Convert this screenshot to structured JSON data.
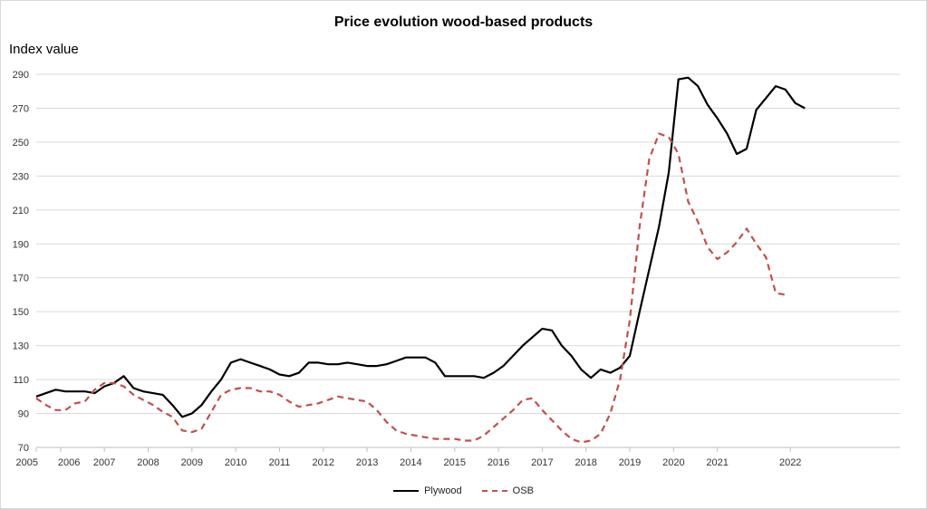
{
  "chart_data": {
    "type": "line",
    "title": "Price evolution wood-based products",
    "ylabel": "Index value",
    "xlabel": "",
    "ylim": [
      70,
      290
    ],
    "yticks": [
      70,
      90,
      110,
      130,
      150,
      170,
      190,
      210,
      230,
      250,
      270,
      290
    ],
    "xlim": [
      2005.0,
      2022.75
    ],
    "xticks": [
      {
        "label": "2005",
        "x": 2005.0
      },
      {
        "label": "2006",
        "x": 2005.5
      },
      {
        "label": "2007",
        "x": 2006.4
      },
      {
        "label": "2008",
        "x": 2007.3
      },
      {
        "label": "2009",
        "x": 2008.2
      },
      {
        "label": "2010",
        "x": 2009.1
      },
      {
        "label": "2011",
        "x": 2010.0
      },
      {
        "label": "2012",
        "x": 2010.9
      },
      {
        "label": "2013",
        "x": 2011.8
      },
      {
        "label": "2014",
        "x": 2012.7
      },
      {
        "label": "2015",
        "x": 2013.6
      },
      {
        "label": "2016",
        "x": 2014.5
      },
      {
        "label": "2017",
        "x": 2015.4
      },
      {
        "label": "2018",
        "x": 2016.3
      },
      {
        "label": "2019",
        "x": 2017.2
      },
      {
        "label": "2020",
        "x": 2018.1
      },
      {
        "label": "2021",
        "x": 2019.0
      },
      {
        "label": "2022",
        "x": 2020.5
      }
    ],
    "grid": "horizontal",
    "legend_position": "bottom",
    "series": [
      {
        "name": "Plywood",
        "color": "#000000",
        "dash": "solid",
        "points": [
          [
            2005.0,
            100
          ],
          [
            2005.2,
            102
          ],
          [
            2005.4,
            104
          ],
          [
            2005.6,
            103
          ],
          [
            2005.8,
            103
          ],
          [
            2006.0,
            103
          ],
          [
            2006.2,
            102
          ],
          [
            2006.4,
            106
          ],
          [
            2006.6,
            108
          ],
          [
            2006.8,
            112
          ],
          [
            2007.0,
            105
          ],
          [
            2007.2,
            103
          ],
          [
            2007.4,
            102
          ],
          [
            2007.6,
            101
          ],
          [
            2007.8,
            95
          ],
          [
            2008.0,
            88
          ],
          [
            2008.2,
            90
          ],
          [
            2008.4,
            95
          ],
          [
            2008.6,
            103
          ],
          [
            2008.8,
            110
          ],
          [
            2009.0,
            120
          ],
          [
            2009.2,
            122
          ],
          [
            2009.4,
            120
          ],
          [
            2009.6,
            118
          ],
          [
            2009.8,
            116
          ],
          [
            2010.0,
            113
          ],
          [
            2010.2,
            112
          ],
          [
            2010.4,
            114
          ],
          [
            2010.6,
            120
          ],
          [
            2010.8,
            120
          ],
          [
            2011.0,
            119
          ],
          [
            2011.2,
            119
          ],
          [
            2011.4,
            120
          ],
          [
            2011.6,
            119
          ],
          [
            2011.8,
            118
          ],
          [
            2012.0,
            118
          ],
          [
            2012.2,
            119
          ],
          [
            2012.4,
            121
          ],
          [
            2012.6,
            123
          ],
          [
            2012.8,
            123
          ],
          [
            2013.0,
            123
          ],
          [
            2013.2,
            120
          ],
          [
            2013.4,
            112
          ],
          [
            2013.6,
            112
          ],
          [
            2013.8,
            112
          ],
          [
            2014.0,
            112
          ],
          [
            2014.2,
            111
          ],
          [
            2014.4,
            114
          ],
          [
            2014.6,
            118
          ],
          [
            2014.8,
            124
          ],
          [
            2015.0,
            130
          ],
          [
            2015.2,
            135
          ],
          [
            2015.4,
            140
          ],
          [
            2015.6,
            139
          ],
          [
            2015.8,
            130
          ],
          [
            2016.0,
            124
          ],
          [
            2016.2,
            116
          ],
          [
            2016.4,
            111
          ],
          [
            2016.6,
            116
          ],
          [
            2016.8,
            114
          ],
          [
            2017.0,
            117
          ],
          [
            2017.2,
            124
          ],
          [
            2017.4,
            150
          ],
          [
            2017.6,
            175
          ],
          [
            2017.8,
            200
          ],
          [
            2018.0,
            232
          ],
          [
            2018.2,
            287
          ],
          [
            2018.4,
            288
          ],
          [
            2018.6,
            283
          ],
          [
            2018.8,
            272
          ],
          [
            2019.0,
            264
          ],
          [
            2019.2,
            255
          ],
          [
            2019.4,
            243
          ],
          [
            2019.6,
            246
          ],
          [
            2019.8,
            269
          ],
          [
            2020.0,
            276
          ],
          [
            2020.2,
            283
          ],
          [
            2020.4,
            281
          ],
          [
            2020.6,
            273
          ],
          [
            2020.8,
            270
          ]
        ]
      },
      {
        "name": "OSB",
        "color": "#c0504d",
        "dash": "dashed",
        "points": [
          [
            2005.0,
            99
          ],
          [
            2005.2,
            95
          ],
          [
            2005.4,
            92
          ],
          [
            2005.6,
            92
          ],
          [
            2005.8,
            96
          ],
          [
            2006.0,
            97
          ],
          [
            2006.2,
            104
          ],
          [
            2006.4,
            108
          ],
          [
            2006.6,
            108
          ],
          [
            2006.8,
            106
          ],
          [
            2007.0,
            101
          ],
          [
            2007.2,
            98
          ],
          [
            2007.4,
            95
          ],
          [
            2007.6,
            91
          ],
          [
            2007.8,
            88
          ],
          [
            2008.0,
            80
          ],
          [
            2008.2,
            79
          ],
          [
            2008.4,
            81
          ],
          [
            2008.6,
            91
          ],
          [
            2008.8,
            101
          ],
          [
            2009.0,
            104
          ],
          [
            2009.2,
            105
          ],
          [
            2009.4,
            105
          ],
          [
            2009.6,
            103
          ],
          [
            2009.8,
            103
          ],
          [
            2010.0,
            101
          ],
          [
            2010.2,
            97
          ],
          [
            2010.4,
            94
          ],
          [
            2010.6,
            95
          ],
          [
            2010.8,
            96
          ],
          [
            2011.0,
            98
          ],
          [
            2011.2,
            100
          ],
          [
            2011.4,
            99
          ],
          [
            2011.6,
            98
          ],
          [
            2011.8,
            97
          ],
          [
            2012.0,
            92
          ],
          [
            2012.2,
            85
          ],
          [
            2012.4,
            80
          ],
          [
            2012.6,
            78
          ],
          [
            2012.8,
            77
          ],
          [
            2013.0,
            76
          ],
          [
            2013.2,
            75
          ],
          [
            2013.4,
            75
          ],
          [
            2013.6,
            75
          ],
          [
            2013.8,
            74
          ],
          [
            2014.0,
            74
          ],
          [
            2014.2,
            77
          ],
          [
            2014.4,
            82
          ],
          [
            2014.6,
            87
          ],
          [
            2014.8,
            92
          ],
          [
            2015.0,
            98
          ],
          [
            2015.2,
            99
          ],
          [
            2015.4,
            92
          ],
          [
            2015.6,
            86
          ],
          [
            2015.8,
            80
          ],
          [
            2016.0,
            75
          ],
          [
            2016.2,
            73
          ],
          [
            2016.4,
            74
          ],
          [
            2016.6,
            78
          ],
          [
            2016.8,
            90
          ],
          [
            2017.0,
            110
          ],
          [
            2017.2,
            145
          ],
          [
            2017.4,
            200
          ],
          [
            2017.6,
            240
          ],
          [
            2017.8,
            255
          ],
          [
            2018.0,
            253
          ],
          [
            2018.2,
            243
          ],
          [
            2018.4,
            215
          ],
          [
            2018.6,
            203
          ],
          [
            2018.8,
            188
          ],
          [
            2019.0,
            181
          ],
          [
            2019.2,
            185
          ],
          [
            2019.4,
            191
          ],
          [
            2019.6,
            199
          ],
          [
            2019.8,
            190
          ],
          [
            2020.0,
            182
          ],
          [
            2020.2,
            161
          ],
          [
            2020.4,
            160
          ]
        ]
      }
    ]
  }
}
